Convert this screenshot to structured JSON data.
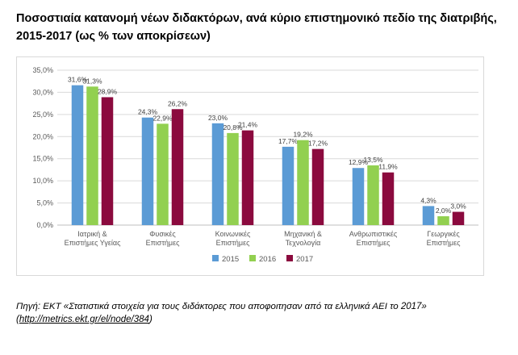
{
  "header": {
    "title_line1": "Ποσοστιαία κατανομή νέων διδακτόρων, ανά κύριο επιστημονικό πεδίο της διατριβής,",
    "title_line2": "2015-2017 (ως % των αποκρίσεων)"
  },
  "source": {
    "text": "Πηγή: ΕΚΤ «Στατιστικά στοιχεία για τους διδάκτορες που αποφοιτησαν από τα ελληνικά ΑΕΙ το 2017»",
    "link_open": "(",
    "link": "http://metrics.ekt.gr/el/node/384",
    "link_close": ")"
  },
  "chart_data": {
    "type": "bar",
    "categories": [
      [
        "Ιατρική &",
        "Επιστήμες Υγείας"
      ],
      [
        "Φυσικές",
        "Επιστήμες"
      ],
      [
        "Κοινωνικές",
        "Επιστήμες"
      ],
      [
        "Μηχανική &",
        "Τεχνολογία"
      ],
      [
        "Ανθρωπιστικές",
        "Επιστήμες"
      ],
      [
        "Γεωργικές",
        "Επιστήμες"
      ]
    ],
    "series": [
      {
        "name": "2015",
        "color": "#5b9bd5",
        "values": [
          31.6,
          24.3,
          23.0,
          17.7,
          12.9,
          4.3
        ],
        "labels": [
          "31,6%",
          "24,3%",
          "23,0%",
          "17,7%",
          "12,9%",
          "4,3%"
        ]
      },
      {
        "name": "2016",
        "color": "#92d050",
        "values": [
          31.3,
          22.9,
          20.8,
          19.2,
          13.5,
          2.0
        ],
        "labels": [
          "31,3%",
          "22,9%",
          "20,8%",
          "19,2%",
          "13,5%",
          "2,0%"
        ]
      },
      {
        "name": "2017",
        "color": "#8b0a3e",
        "values": [
          28.9,
          26.2,
          21.4,
          17.2,
          11.9,
          3.0
        ],
        "labels": [
          "28,9%",
          "26,2%",
          "21,4%",
          "17,2%",
          "11,9%",
          "3,0%"
        ]
      }
    ],
    "ylim": [
      0,
      35
    ],
    "yticks": [
      0,
      5,
      10,
      15,
      20,
      25,
      30,
      35
    ],
    "ytick_labels": [
      "0,0%",
      "5,0%",
      "10,0%",
      "15,0%",
      "20,0%",
      "25,0%",
      "30,0%",
      "35,0%"
    ],
    "grid": true,
    "legend": "bottom"
  }
}
